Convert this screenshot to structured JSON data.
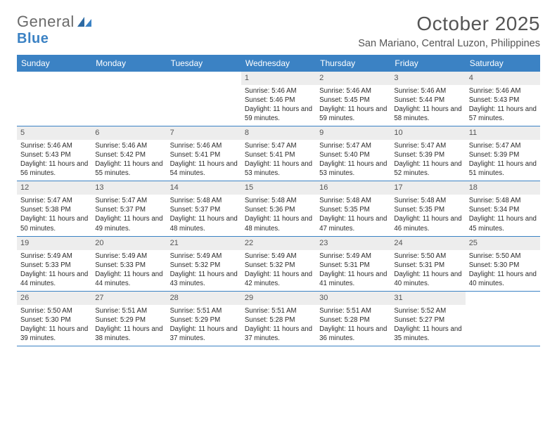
{
  "brand": {
    "text1": "General",
    "text2": "Blue",
    "color_gray": "#6a6a6a",
    "color_blue": "#3b82c4"
  },
  "title": "October 2025",
  "location": "San Mariano, Central Luzon, Philippines",
  "colors": {
    "header_bg": "#3b82c4",
    "daynum_bg": "#ededed",
    "divider": "#3b82c4",
    "text": "#333333",
    "background": "#ffffff"
  },
  "typography": {
    "title_fontsize": 28,
    "location_fontsize": 14.5,
    "dow_fontsize": 12,
    "daynum_fontsize": 11,
    "body_fontsize": 9.7
  },
  "dow": [
    "Sunday",
    "Monday",
    "Tuesday",
    "Wednesday",
    "Thursday",
    "Friday",
    "Saturday"
  ],
  "weeks": [
    [
      {
        "n": "",
        "sr": "",
        "ss": "",
        "dl": ""
      },
      {
        "n": "",
        "sr": "",
        "ss": "",
        "dl": ""
      },
      {
        "n": "",
        "sr": "",
        "ss": "",
        "dl": ""
      },
      {
        "n": "1",
        "sr": "Sunrise: 5:46 AM",
        "ss": "Sunset: 5:46 PM",
        "dl": "Daylight: 11 hours and 59 minutes."
      },
      {
        "n": "2",
        "sr": "Sunrise: 5:46 AM",
        "ss": "Sunset: 5:45 PM",
        "dl": "Daylight: 11 hours and 59 minutes."
      },
      {
        "n": "3",
        "sr": "Sunrise: 5:46 AM",
        "ss": "Sunset: 5:44 PM",
        "dl": "Daylight: 11 hours and 58 minutes."
      },
      {
        "n": "4",
        "sr": "Sunrise: 5:46 AM",
        "ss": "Sunset: 5:43 PM",
        "dl": "Daylight: 11 hours and 57 minutes."
      }
    ],
    [
      {
        "n": "5",
        "sr": "Sunrise: 5:46 AM",
        "ss": "Sunset: 5:43 PM",
        "dl": "Daylight: 11 hours and 56 minutes."
      },
      {
        "n": "6",
        "sr": "Sunrise: 5:46 AM",
        "ss": "Sunset: 5:42 PM",
        "dl": "Daylight: 11 hours and 55 minutes."
      },
      {
        "n": "7",
        "sr": "Sunrise: 5:46 AM",
        "ss": "Sunset: 5:41 PM",
        "dl": "Daylight: 11 hours and 54 minutes."
      },
      {
        "n": "8",
        "sr": "Sunrise: 5:47 AM",
        "ss": "Sunset: 5:41 PM",
        "dl": "Daylight: 11 hours and 53 minutes."
      },
      {
        "n": "9",
        "sr": "Sunrise: 5:47 AM",
        "ss": "Sunset: 5:40 PM",
        "dl": "Daylight: 11 hours and 53 minutes."
      },
      {
        "n": "10",
        "sr": "Sunrise: 5:47 AM",
        "ss": "Sunset: 5:39 PM",
        "dl": "Daylight: 11 hours and 52 minutes."
      },
      {
        "n": "11",
        "sr": "Sunrise: 5:47 AM",
        "ss": "Sunset: 5:39 PM",
        "dl": "Daylight: 11 hours and 51 minutes."
      }
    ],
    [
      {
        "n": "12",
        "sr": "Sunrise: 5:47 AM",
        "ss": "Sunset: 5:38 PM",
        "dl": "Daylight: 11 hours and 50 minutes."
      },
      {
        "n": "13",
        "sr": "Sunrise: 5:47 AM",
        "ss": "Sunset: 5:37 PM",
        "dl": "Daylight: 11 hours and 49 minutes."
      },
      {
        "n": "14",
        "sr": "Sunrise: 5:48 AM",
        "ss": "Sunset: 5:37 PM",
        "dl": "Daylight: 11 hours and 48 minutes."
      },
      {
        "n": "15",
        "sr": "Sunrise: 5:48 AM",
        "ss": "Sunset: 5:36 PM",
        "dl": "Daylight: 11 hours and 48 minutes."
      },
      {
        "n": "16",
        "sr": "Sunrise: 5:48 AM",
        "ss": "Sunset: 5:35 PM",
        "dl": "Daylight: 11 hours and 47 minutes."
      },
      {
        "n": "17",
        "sr": "Sunrise: 5:48 AM",
        "ss": "Sunset: 5:35 PM",
        "dl": "Daylight: 11 hours and 46 minutes."
      },
      {
        "n": "18",
        "sr": "Sunrise: 5:48 AM",
        "ss": "Sunset: 5:34 PM",
        "dl": "Daylight: 11 hours and 45 minutes."
      }
    ],
    [
      {
        "n": "19",
        "sr": "Sunrise: 5:49 AM",
        "ss": "Sunset: 5:33 PM",
        "dl": "Daylight: 11 hours and 44 minutes."
      },
      {
        "n": "20",
        "sr": "Sunrise: 5:49 AM",
        "ss": "Sunset: 5:33 PM",
        "dl": "Daylight: 11 hours and 44 minutes."
      },
      {
        "n": "21",
        "sr": "Sunrise: 5:49 AM",
        "ss": "Sunset: 5:32 PM",
        "dl": "Daylight: 11 hours and 43 minutes."
      },
      {
        "n": "22",
        "sr": "Sunrise: 5:49 AM",
        "ss": "Sunset: 5:32 PM",
        "dl": "Daylight: 11 hours and 42 minutes."
      },
      {
        "n": "23",
        "sr": "Sunrise: 5:49 AM",
        "ss": "Sunset: 5:31 PM",
        "dl": "Daylight: 11 hours and 41 minutes."
      },
      {
        "n": "24",
        "sr": "Sunrise: 5:50 AM",
        "ss": "Sunset: 5:31 PM",
        "dl": "Daylight: 11 hours and 40 minutes."
      },
      {
        "n": "25",
        "sr": "Sunrise: 5:50 AM",
        "ss": "Sunset: 5:30 PM",
        "dl": "Daylight: 11 hours and 40 minutes."
      }
    ],
    [
      {
        "n": "26",
        "sr": "Sunrise: 5:50 AM",
        "ss": "Sunset: 5:30 PM",
        "dl": "Daylight: 11 hours and 39 minutes."
      },
      {
        "n": "27",
        "sr": "Sunrise: 5:51 AM",
        "ss": "Sunset: 5:29 PM",
        "dl": "Daylight: 11 hours and 38 minutes."
      },
      {
        "n": "28",
        "sr": "Sunrise: 5:51 AM",
        "ss": "Sunset: 5:29 PM",
        "dl": "Daylight: 11 hours and 37 minutes."
      },
      {
        "n": "29",
        "sr": "Sunrise: 5:51 AM",
        "ss": "Sunset: 5:28 PM",
        "dl": "Daylight: 11 hours and 37 minutes."
      },
      {
        "n": "30",
        "sr": "Sunrise: 5:51 AM",
        "ss": "Sunset: 5:28 PM",
        "dl": "Daylight: 11 hours and 36 minutes."
      },
      {
        "n": "31",
        "sr": "Sunrise: 5:52 AM",
        "ss": "Sunset: 5:27 PM",
        "dl": "Daylight: 11 hours and 35 minutes."
      },
      {
        "n": "",
        "sr": "",
        "ss": "",
        "dl": ""
      }
    ]
  ]
}
